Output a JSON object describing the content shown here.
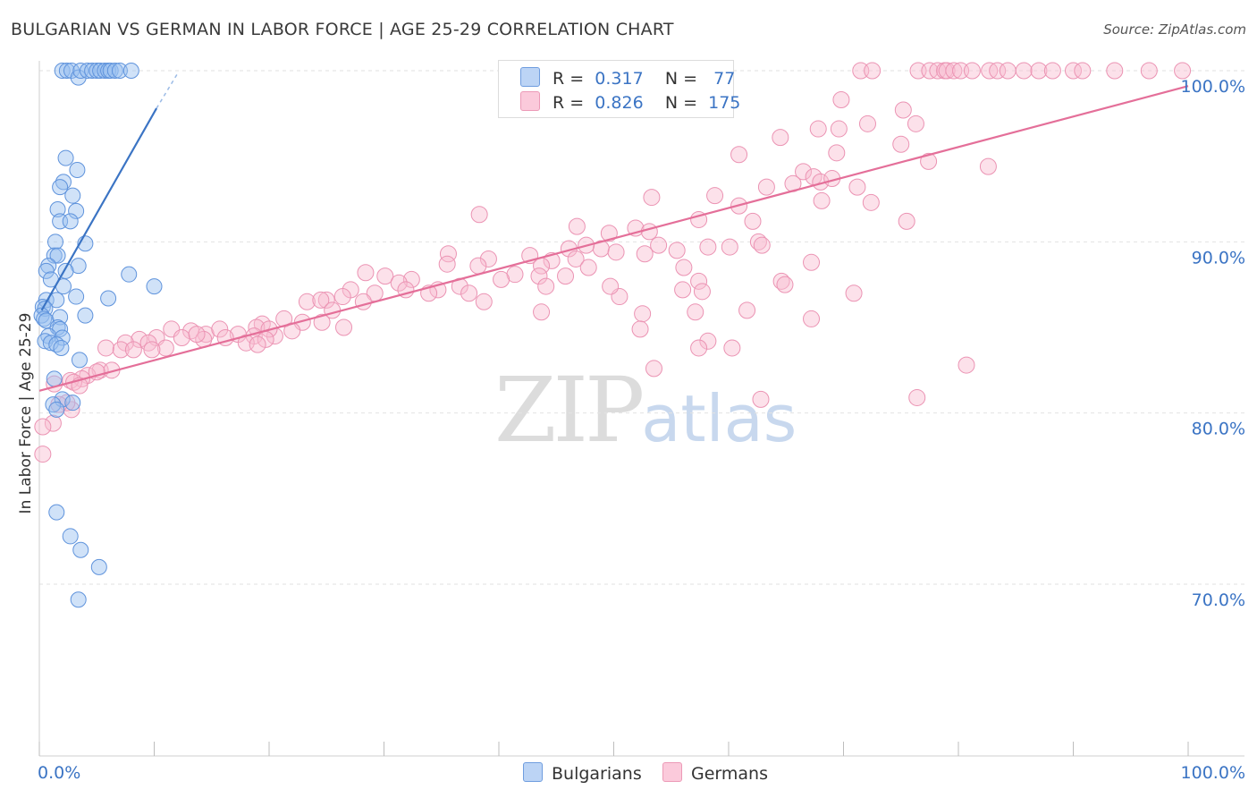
{
  "header": {
    "title": "BULGARIAN VS GERMAN IN LABOR FORCE | AGE 25-29 CORRELATION CHART",
    "source": "Source: ZipAtlas.com"
  },
  "legend": {
    "r_label": "R =",
    "n_label": "N =",
    "rows": [
      {
        "name": "Bulgarians",
        "r": "0.317",
        "n": "77",
        "color": "#a9c8f2",
        "stroke": "#4f86d6"
      },
      {
        "name": "Germans",
        "r": "0.826",
        "n": "175",
        "color": "#f9bcd1",
        "stroke": "#e889aa"
      }
    ]
  },
  "watermark": {
    "zip": "ZIP",
    "atlas": "atlas"
  },
  "colors": {
    "blue": "#3b74c4",
    "blue_fill": "rgba(150,190,240,0.45)",
    "blue_stroke": "#5f93dc",
    "pink": "#e46f99",
    "pink_fill": "rgba(249,188,209,0.45)",
    "pink_stroke": "#eb93b3",
    "axis_text": "#3b74c4",
    "grid": "#e2e2e2"
  },
  "chart_data": {
    "type": "scatter",
    "title": "BULGARIAN VS GERMAN IN LABOR FORCE | AGE 25-29 CORRELATION CHART",
    "xlabel": "",
    "ylabel": "In Labor Force | Age 25-29",
    "xlim": [
      0,
      100
    ],
    "ylim": [
      61,
      100.5
    ],
    "x_tick_labels": [
      "0.0%",
      "100.0%"
    ],
    "y_ticks": [
      70,
      80,
      90,
      100
    ],
    "y_tick_labels": [
      "70.0%",
      "80.0%",
      "90.0%",
      "100.0%"
    ],
    "grid": true,
    "series": [
      {
        "name": "Bulgarians",
        "r": 0.317,
        "n": 77,
        "trend": {
          "x0": 0.2,
          "y0": 86.0,
          "x1": 10.2,
          "y1": 97.8,
          "dash_to_x": 12.0,
          "dash_to_y": 99.8
        },
        "points": [
          [
            2.0,
            100
          ],
          [
            2.4,
            100
          ],
          [
            2.8,
            100
          ],
          [
            3.4,
            99.6
          ],
          [
            3.6,
            100
          ],
          [
            4.2,
            100
          ],
          [
            4.6,
            100
          ],
          [
            5.0,
            100
          ],
          [
            5.3,
            100
          ],
          [
            5.7,
            100
          ],
          [
            6.0,
            100
          ],
          [
            6.2,
            100
          ],
          [
            6.6,
            100
          ],
          [
            7.0,
            100
          ],
          [
            8.0,
            100
          ],
          [
            2.3,
            94.9
          ],
          [
            3.3,
            94.2
          ],
          [
            2.1,
            93.5
          ],
          [
            1.8,
            93.2
          ],
          [
            2.9,
            92.7
          ],
          [
            1.6,
            91.9
          ],
          [
            3.2,
            91.8
          ],
          [
            1.8,
            91.2
          ],
          [
            2.7,
            91.2
          ],
          [
            1.4,
            90.0
          ],
          [
            4.0,
            89.9
          ],
          [
            1.3,
            89.2
          ],
          [
            1.6,
            89.2
          ],
          [
            0.8,
            88.6
          ],
          [
            3.4,
            88.6
          ],
          [
            2.3,
            88.3
          ],
          [
            0.6,
            88.3
          ],
          [
            1.0,
            87.8
          ],
          [
            2.1,
            87.4
          ],
          [
            7.8,
            88.1
          ],
          [
            10.0,
            87.4
          ],
          [
            6.0,
            86.7
          ],
          [
            0.6,
            86.6
          ],
          [
            1.5,
            86.6
          ],
          [
            3.2,
            86.8
          ],
          [
            0.3,
            86.2
          ],
          [
            0.5,
            86.1
          ],
          [
            0.2,
            85.7
          ],
          [
            0.4,
            85.5
          ],
          [
            0.6,
            85.4
          ],
          [
            1.8,
            85.6
          ],
          [
            4.0,
            85.7
          ],
          [
            1.6,
            85.0
          ],
          [
            1.8,
            84.9
          ],
          [
            0.8,
            84.5
          ],
          [
            2.0,
            84.4
          ],
          [
            0.5,
            84.2
          ],
          [
            1.0,
            84.1
          ],
          [
            1.5,
            84.0
          ],
          [
            1.9,
            83.8
          ],
          [
            3.5,
            83.1
          ],
          [
            1.3,
            82.0
          ],
          [
            2.0,
            80.8
          ],
          [
            1.2,
            80.5
          ],
          [
            2.9,
            80.6
          ],
          [
            1.5,
            80.2
          ],
          [
            1.5,
            74.2
          ],
          [
            2.7,
            72.8
          ],
          [
            3.6,
            72.0
          ],
          [
            5.2,
            71.0
          ],
          [
            3.4,
            69.1
          ]
        ]
      },
      {
        "name": "Germans",
        "r": 0.826,
        "n": 175,
        "trend": {
          "x0": 0,
          "y0": 81.3,
          "x1": 100,
          "y1": 99.1
        },
        "points": [
          [
            71.5,
            100
          ],
          [
            72.5,
            100
          ],
          [
            76.5,
            100
          ],
          [
            77.5,
            100
          ],
          [
            78.2,
            100
          ],
          [
            78.8,
            100
          ],
          [
            79.0,
            100
          ],
          [
            79.6,
            100
          ],
          [
            80.2,
            100
          ],
          [
            81.2,
            100
          ],
          [
            82.7,
            100
          ],
          [
            83.4,
            100
          ],
          [
            84.3,
            100
          ],
          [
            85.7,
            100
          ],
          [
            87.0,
            100
          ],
          [
            88.2,
            100
          ],
          [
            90.0,
            100
          ],
          [
            90.8,
            100
          ],
          [
            93.6,
            100
          ],
          [
            96.6,
            100
          ],
          [
            99.5,
            100
          ],
          [
            69.8,
            98.3
          ],
          [
            75.2,
            97.7
          ],
          [
            76.3,
            96.9
          ],
          [
            72.1,
            96.9
          ],
          [
            67.8,
            96.6
          ],
          [
            69.6,
            96.6
          ],
          [
            64.5,
            96.1
          ],
          [
            75.0,
            95.7
          ],
          [
            77.4,
            94.7
          ],
          [
            69.4,
            95.2
          ],
          [
            60.9,
            95.1
          ],
          [
            82.6,
            94.4
          ],
          [
            66.5,
            94.1
          ],
          [
            67.4,
            93.8
          ],
          [
            68.0,
            93.5
          ],
          [
            69.0,
            93.7
          ],
          [
            65.6,
            93.4
          ],
          [
            63.3,
            93.2
          ],
          [
            71.2,
            93.2
          ],
          [
            58.8,
            92.7
          ],
          [
            60.9,
            92.1
          ],
          [
            53.3,
            92.6
          ],
          [
            72.4,
            92.3
          ],
          [
            68.1,
            92.4
          ],
          [
            62.1,
            91.2
          ],
          [
            75.5,
            91.2
          ],
          [
            57.4,
            91.3
          ],
          [
            51.9,
            90.8
          ],
          [
            46.8,
            90.9
          ],
          [
            49.6,
            90.5
          ],
          [
            38.3,
            91.6
          ],
          [
            53.1,
            90.6
          ],
          [
            62.6,
            90.0
          ],
          [
            62.9,
            89.8
          ],
          [
            60.1,
            89.7
          ],
          [
            58.2,
            89.7
          ],
          [
            48.9,
            89.6
          ],
          [
            47.6,
            89.8
          ],
          [
            46.1,
            89.6
          ],
          [
            53.9,
            89.8
          ],
          [
            55.5,
            89.5
          ],
          [
            50.2,
            89.4
          ],
          [
            52.7,
            89.3
          ],
          [
            42.7,
            89.2
          ],
          [
            44.6,
            88.9
          ],
          [
            46.7,
            89.0
          ],
          [
            39.1,
            89.0
          ],
          [
            35.6,
            89.3
          ],
          [
            35.5,
            88.7
          ],
          [
            38.2,
            88.6
          ],
          [
            43.7,
            88.6
          ],
          [
            47.8,
            88.5
          ],
          [
            56.1,
            88.5
          ],
          [
            67.2,
            88.8
          ],
          [
            41.4,
            88.1
          ],
          [
            43.5,
            88.0
          ],
          [
            40.2,
            87.8
          ],
          [
            30.1,
            88.0
          ],
          [
            32.4,
            87.8
          ],
          [
            28.4,
            88.2
          ],
          [
            31.3,
            87.6
          ],
          [
            36.6,
            87.4
          ],
          [
            37.4,
            87.0
          ],
          [
            44.1,
            87.4
          ],
          [
            57.4,
            87.7
          ],
          [
            31.9,
            87.2
          ],
          [
            27.1,
            87.2
          ],
          [
            29.2,
            87.0
          ],
          [
            26.4,
            86.8
          ],
          [
            34.7,
            87.2
          ],
          [
            33.9,
            87.0
          ],
          [
            25.0,
            86.6
          ],
          [
            23.3,
            86.5
          ],
          [
            24.5,
            86.6
          ],
          [
            28.2,
            86.5
          ],
          [
            25.5,
            86.0
          ],
          [
            38.7,
            86.5
          ],
          [
            50.5,
            86.8
          ],
          [
            57.7,
            87.1
          ],
          [
            70.9,
            87.0
          ],
          [
            64.6,
            87.7
          ],
          [
            64.9,
            87.5
          ],
          [
            43.7,
            85.9
          ],
          [
            52.5,
            85.8
          ],
          [
            57.1,
            85.9
          ],
          [
            61.6,
            86.0
          ],
          [
            67.2,
            85.5
          ],
          [
            21.3,
            85.5
          ],
          [
            22.9,
            85.3
          ],
          [
            24.6,
            85.3
          ],
          [
            19.4,
            85.2
          ],
          [
            18.9,
            85.0
          ],
          [
            17.3,
            84.6
          ],
          [
            14.5,
            84.6
          ],
          [
            15.7,
            84.9
          ],
          [
            13.2,
            84.8
          ],
          [
            11.5,
            84.9
          ],
          [
            12.4,
            84.4
          ],
          [
            10.2,
            84.4
          ],
          [
            16.2,
            84.4
          ],
          [
            14.3,
            84.3
          ],
          [
            8.7,
            84.3
          ],
          [
            13.7,
            84.6
          ],
          [
            18.7,
            84.5
          ],
          [
            20.5,
            84.5
          ],
          [
            22.0,
            84.8
          ],
          [
            26.5,
            85.0
          ],
          [
            20.0,
            84.9
          ],
          [
            19.7,
            84.3
          ],
          [
            7.5,
            84.1
          ],
          [
            9.5,
            84.1
          ],
          [
            11.0,
            83.8
          ],
          [
            5.8,
            83.8
          ],
          [
            7.1,
            83.7
          ],
          [
            8.2,
            83.7
          ],
          [
            9.8,
            83.7
          ],
          [
            18.0,
            84.1
          ],
          [
            19.0,
            84.0
          ],
          [
            52.3,
            84.9
          ],
          [
            58.2,
            84.2
          ],
          [
            57.4,
            83.8
          ],
          [
            60.3,
            83.8
          ],
          [
            5.3,
            82.5
          ],
          [
            6.3,
            82.5
          ],
          [
            4.2,
            82.2
          ],
          [
            3.7,
            82.0
          ],
          [
            2.7,
            81.9
          ],
          [
            3.0,
            81.8
          ],
          [
            1.3,
            81.7
          ],
          [
            3.5,
            81.6
          ],
          [
            5.0,
            82.4
          ],
          [
            2.8,
            80.2
          ],
          [
            2.4,
            80.6
          ],
          [
            1.7,
            80.5
          ],
          [
            1.2,
            79.4
          ],
          [
            0.3,
            79.2
          ],
          [
            0.3,
            77.6
          ],
          [
            56.0,
            87.2
          ],
          [
            80.7,
            82.8
          ],
          [
            53.5,
            82.6
          ],
          [
            76.4,
            80.9
          ],
          [
            62.8,
            80.8
          ],
          [
            49.7,
            87.4
          ],
          [
            45.8,
            88.0
          ]
        ]
      }
    ]
  }
}
